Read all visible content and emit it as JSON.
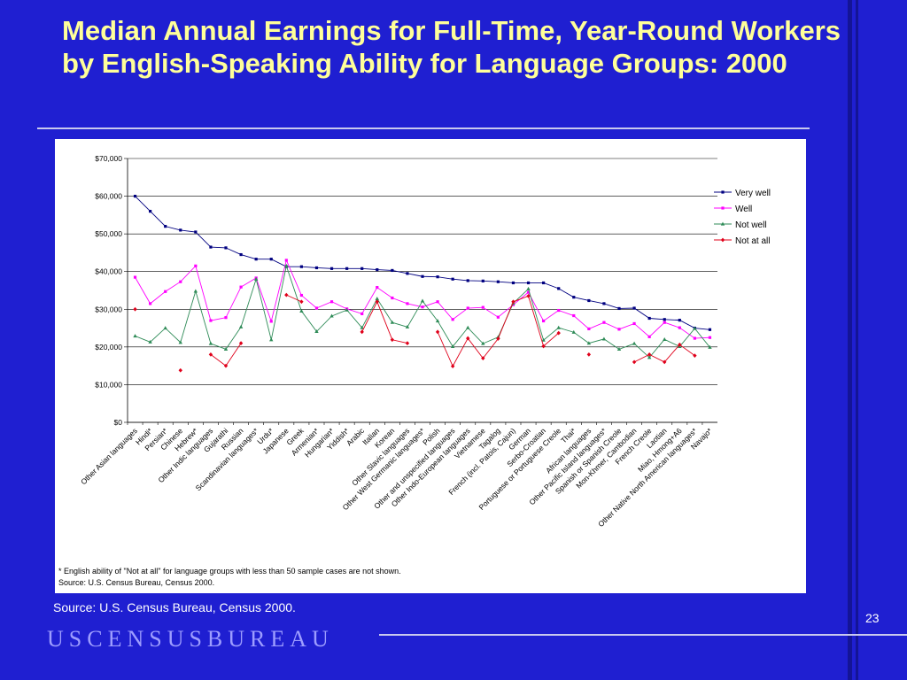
{
  "slide": {
    "title": "Median Annual Earnings for Full-Time, Year-Round Workers by English-Speaking Ability for Language Groups: 2000",
    "source": "Source: U.S. Census Bureau, Census 2000.",
    "page_number": "23",
    "brand": "USCENSUSBUREAU"
  },
  "footnotes": [
    "* English ability of \"Not at all\" for language groups with less than 50 sample cases are not shown.",
    "Source: U.S. Census Bureau, Census 2000."
  ],
  "colors": {
    "background": "#1f1fd1",
    "title": "#ffff99",
    "very_well": "#000080",
    "well": "#ff00ff",
    "not_well": "#2e8b57",
    "not_at_all": "#e0001a"
  },
  "chart_data": {
    "type": "line",
    "title": "",
    "xlabel": "",
    "ylabel": "",
    "ylim": [
      0,
      70000
    ],
    "yticks": [
      0,
      10000,
      20000,
      30000,
      40000,
      50000,
      60000,
      70000
    ],
    "ytick_labels": [
      "$0",
      "$10,000",
      "$20,000",
      "$30,000",
      "$40,000",
      "$50,000",
      "$60,000",
      "$70,000"
    ],
    "grid": true,
    "legend": "right",
    "categories": [
      "Other Asian languages",
      "Hindi*",
      "Persian*",
      "Chinese",
      "Hebrew*",
      "Other Indic languages",
      "Gujarathi",
      "Russian",
      "Scandinavian languages*",
      "Urdu*",
      "Japanese",
      "Greek",
      "Armenian*",
      "Hungarian*",
      "Yiddish*",
      "Arabic",
      "Italian",
      "Korean",
      "Other Slavic languages",
      "Other West Germanic languages*",
      "Polish",
      "Other and unspecified languages",
      "Other Indo-European languages",
      "Vietnamese",
      "Tagalog",
      "French (incl. Patois, Cajun)",
      "German",
      "Serbo-Croatian",
      "Portuguese or Portuguese Creole",
      "Thai*",
      "African languages",
      "Other Pacific Island languages*",
      "Spanish or Spanish Creole",
      "Mon-Khmer, Cambodian",
      "French Creole",
      "Laotian",
      "Miao, Hmong+A6",
      "Other Native North American languages*",
      "Navajo*"
    ],
    "series": [
      {
        "name": "Very well",
        "values": [
          60000,
          56000,
          52000,
          51000,
          50500,
          46500,
          46300,
          44500,
          43300,
          43300,
          41300,
          41300,
          41000,
          40800,
          40800,
          40800,
          40500,
          40300,
          39500,
          38700,
          38600,
          38000,
          37600,
          37500,
          37300,
          37000,
          37000,
          37000,
          35500,
          33200,
          32300,
          31500,
          30200,
          30300,
          27600,
          27300,
          27100,
          25000,
          24600
        ]
      },
      {
        "name": "Well",
        "values": [
          38500,
          31500,
          34700,
          37300,
          41500,
          27000,
          27800,
          35900,
          38300,
          26800,
          43000,
          33700,
          30300,
          32000,
          30100,
          28800,
          35800,
          33000,
          31500,
          30600,
          32000,
          27300,
          30300,
          30500,
          27900,
          31200,
          34500,
          26900,
          29700,
          28300,
          24800,
          26500,
          24700,
          26200,
          22700,
          26500,
          25100,
          22300,
          22500
        ]
      },
      {
        "name": "Not well",
        "values": [
          22900,
          21300,
          25000,
          21200,
          34800,
          20900,
          19400,
          25300,
          38000,
          21900,
          41500,
          29500,
          24100,
          28200,
          29800,
          25100,
          32800,
          26500,
          25300,
          32200,
          26900,
          20100,
          25100,
          20900,
          22600,
          31600,
          35400,
          21800,
          25100,
          23900,
          21000,
          22100,
          19400,
          20900,
          17200,
          22000,
          20100,
          24900,
          19900
        ]
      },
      {
        "name": "Not at all",
        "values": [
          30000,
          null,
          null,
          13800,
          null,
          18000,
          15000,
          21000,
          null,
          null,
          33800,
          32000,
          null,
          null,
          null,
          24000,
          32000,
          21900,
          21000,
          null,
          24000,
          14900,
          22300,
          17000,
          22200,
          32000,
          33500,
          20200,
          23700,
          null,
          18000,
          null,
          null,
          16000,
          18000,
          16000,
          20600,
          17700,
          null
        ]
      }
    ]
  }
}
